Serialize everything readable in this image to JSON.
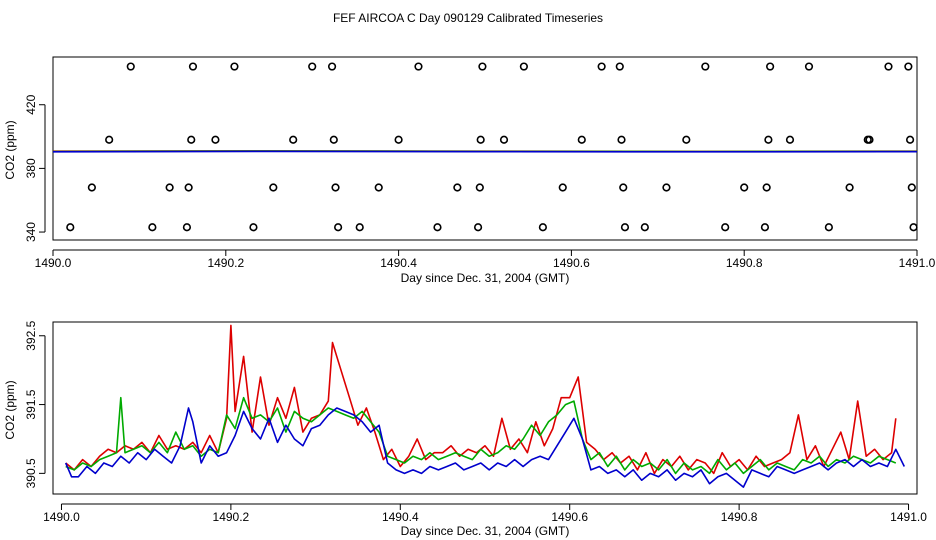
{
  "title": "FEF AIRCOA C  Day 090129  Calibrated Timeseries",
  "chart_data": [
    {
      "type": "scatter",
      "xlabel": "Day since Dec. 31, 2004 (GMT)",
      "ylabel": "CO2 (ppm)",
      "xlim": [
        1490.0,
        1491.0
      ],
      "ylim": [
        335,
        450
      ],
      "xticks": [
        1490.0,
        1490.2,
        1490.4,
        1490.6,
        1490.8,
        1491.0
      ],
      "xtick_labels": [
        "1490.0",
        "1490.2",
        "1490.4",
        "1490.6",
        "1490.8",
        "1491.0"
      ],
      "yticks": [
        340,
        380,
        420
      ],
      "ytick_labels": [
        "340",
        "380",
        "420"
      ],
      "grid": false,
      "series": [
        {
          "style": "open-circle",
          "color": "#000000",
          "x": [
            1490.02,
            1490.045,
            1490.065,
            1490.09,
            1490.115,
            1490.135,
            1490.155,
            1490.157,
            1490.16,
            1490.162,
            1490.188,
            1490.21,
            1490.232,
            1490.255,
            1490.278,
            1490.3,
            1490.323,
            1490.325,
            1490.327,
            1490.33,
            1490.355,
            1490.377,
            1490.4,
            1490.423,
            1490.445,
            1490.468,
            1490.492,
            1490.494,
            1490.495,
            1490.497,
            1490.522,
            1490.545,
            1490.567,
            1490.59,
            1490.612,
            1490.635,
            1490.656,
            1490.658,
            1490.66,
            1490.662,
            1490.685,
            1490.71,
            1490.733,
            1490.755,
            1490.778,
            1490.8,
            1490.824,
            1490.826,
            1490.828,
            1490.83,
            1490.853,
            1490.875,
            1490.898,
            1490.922,
            1490.943,
            1490.945,
            1490.967,
            1490.99,
            1490.992,
            1490.994,
            1490.996
          ],
          "y": [
            343,
            368,
            398,
            444,
            343,
            368,
            343,
            368,
            398,
            444,
            398,
            444,
            343,
            368,
            398,
            444,
            444,
            398,
            368,
            343,
            343,
            368,
            398,
            444,
            343,
            368,
            343,
            368,
            398,
            444,
            398,
            444,
            343,
            368,
            398,
            444,
            444,
            398,
            368,
            343,
            343,
            368,
            398,
            444,
            343,
            368,
            343,
            368,
            398,
            444,
            398,
            444,
            343,
            368,
            398,
            398,
            444,
            444,
            398,
            368,
            343
          ]
        },
        {
          "style": "line",
          "color": "#dd0000",
          "x": [
            1490.0,
            1490.25,
            1490.5,
            1490.75,
            1491.0
          ],
          "y": [
            390.8,
            391.0,
            390.8,
            390.7,
            390.8
          ]
        },
        {
          "style": "line",
          "color": "#00aa00",
          "x": [
            1490.0,
            1490.25,
            1490.5,
            1490.75,
            1491.0
          ],
          "y": [
            390.6,
            390.9,
            390.7,
            390.6,
            390.7
          ]
        },
        {
          "style": "line",
          "color": "#0000cc",
          "x": [
            1490.0,
            1490.25,
            1490.5,
            1490.75,
            1491.0
          ],
          "y": [
            390.4,
            390.7,
            390.5,
            390.4,
            390.5
          ]
        }
      ]
    },
    {
      "type": "line",
      "xlabel": "Day since Dec. 31, 2004 (GMT)",
      "ylabel": "CO2 (ppm)",
      "xlim": [
        1489.99,
        1491.01
      ],
      "ylim": [
        390.2,
        392.7
      ],
      "xticks": [
        1490.0,
        1490.2,
        1490.4,
        1490.6,
        1490.8,
        1491.0
      ],
      "xtick_labels": [
        "1490.0",
        "1490.2",
        "1490.4",
        "1490.6",
        "1490.8",
        "1491.0"
      ],
      "yticks": [
        390.5,
        391.5,
        392.5
      ],
      "ytick_labels": [
        "390.5",
        "391.5",
        "392.5"
      ],
      "grid": false,
      "series": [
        {
          "color": "#dd0000",
          "x": [
            1490.005,
            1490.015,
            1490.025,
            1490.035,
            1490.045,
            1490.055,
            1490.065,
            1490.075,
            1490.085,
            1490.095,
            1490.105,
            1490.115,
            1490.125,
            1490.135,
            1490.145,
            1490.155,
            1490.165,
            1490.175,
            1490.185,
            1490.195,
            1490.2,
            1490.205,
            1490.215,
            1490.225,
            1490.235,
            1490.245,
            1490.255,
            1490.265,
            1490.275,
            1490.285,
            1490.295,
            1490.305,
            1490.315,
            1490.32,
            1490.33,
            1490.34,
            1490.35,
            1490.36,
            1490.37,
            1490.38,
            1490.39,
            1490.4,
            1490.41,
            1490.42,
            1490.43,
            1490.44,
            1490.45,
            1490.46,
            1490.47,
            1490.48,
            1490.49,
            1490.5,
            1490.51,
            1490.52,
            1490.53,
            1490.54,
            1490.55,
            1490.56,
            1490.57,
            1490.58,
            1490.59,
            1490.6,
            1490.61,
            1490.62,
            1490.63,
            1490.64,
            1490.65,
            1490.66,
            1490.67,
            1490.68,
            1490.69,
            1490.7,
            1490.71,
            1490.72,
            1490.73,
            1490.74,
            1490.75,
            1490.76,
            1490.77,
            1490.78,
            1490.79,
            1490.8,
            1490.81,
            1490.82,
            1490.83,
            1490.84,
            1490.85,
            1490.86,
            1490.87,
            1490.88,
            1490.89,
            1490.9,
            1490.91,
            1490.92,
            1490.93,
            1490.94,
            1490.95,
            1490.96,
            1490.97,
            1490.98,
            1490.985
          ],
          "y": [
            390.65,
            390.55,
            390.7,
            390.6,
            390.75,
            390.85,
            390.8,
            390.9,
            390.85,
            390.95,
            390.8,
            391.05,
            390.85,
            390.9,
            390.85,
            390.95,
            390.8,
            391.05,
            390.8,
            391.3,
            392.65,
            391.4,
            392.2,
            391.1,
            391.9,
            391.2,
            391.6,
            391.3,
            391.75,
            391.1,
            391.3,
            391.35,
            391.55,
            392.4,
            392.0,
            391.6,
            391.2,
            391.45,
            391.1,
            390.7,
            390.85,
            390.6,
            390.75,
            391.0,
            390.7,
            390.8,
            390.8,
            390.9,
            390.75,
            390.85,
            390.8,
            390.9,
            390.75,
            391.3,
            390.85,
            391.0,
            390.8,
            391.25,
            390.9,
            391.15,
            391.6,
            391.6,
            391.9,
            390.95,
            390.85,
            390.7,
            390.8,
            390.65,
            390.75,
            390.55,
            390.8,
            390.5,
            390.7,
            390.6,
            390.75,
            390.55,
            390.7,
            390.65,
            390.5,
            390.8,
            390.6,
            390.7,
            390.55,
            390.75,
            390.6,
            390.65,
            390.7,
            390.8,
            391.35,
            390.7,
            390.9,
            390.6,
            390.85,
            391.1,
            390.7,
            391.55,
            390.75,
            390.85,
            390.7,
            390.8,
            391.3
          ]
        },
        {
          "color": "#00aa00",
          "x": [
            1490.005,
            1490.015,
            1490.025,
            1490.035,
            1490.045,
            1490.055,
            1490.065,
            1490.07,
            1490.075,
            1490.085,
            1490.095,
            1490.105,
            1490.115,
            1490.125,
            1490.135,
            1490.145,
            1490.155,
            1490.165,
            1490.175,
            1490.185,
            1490.195,
            1490.205,
            1490.215,
            1490.225,
            1490.235,
            1490.245,
            1490.255,
            1490.265,
            1490.275,
            1490.285,
            1490.295,
            1490.305,
            1490.315,
            1490.325,
            1490.335,
            1490.345,
            1490.355,
            1490.365,
            1490.375,
            1490.385,
            1490.395,
            1490.405,
            1490.415,
            1490.425,
            1490.435,
            1490.445,
            1490.455,
            1490.465,
            1490.475,
            1490.485,
            1490.495,
            1490.505,
            1490.515,
            1490.525,
            1490.535,
            1490.545,
            1490.555,
            1490.565,
            1490.575,
            1490.585,
            1490.595,
            1490.605,
            1490.615,
            1490.625,
            1490.635,
            1490.645,
            1490.655,
            1490.665,
            1490.675,
            1490.685,
            1490.695,
            1490.705,
            1490.715,
            1490.725,
            1490.735,
            1490.745,
            1490.755,
            1490.765,
            1490.775,
            1490.785,
            1490.795,
            1490.805,
            1490.815,
            1490.825,
            1490.835,
            1490.845,
            1490.855,
            1490.865,
            1490.875,
            1490.885,
            1490.895,
            1490.905,
            1490.915,
            1490.925,
            1490.935,
            1490.945,
            1490.955,
            1490.965,
            1490.975,
            1490.985
          ],
          "y": [
            390.6,
            390.55,
            390.65,
            390.6,
            390.7,
            390.75,
            390.8,
            391.6,
            390.8,
            390.85,
            390.9,
            390.8,
            390.95,
            390.8,
            391.1,
            390.85,
            390.9,
            390.75,
            390.85,
            390.8,
            391.35,
            391.15,
            391.6,
            391.3,
            391.35,
            391.25,
            391.45,
            391.1,
            391.4,
            391.3,
            391.25,
            391.35,
            391.45,
            391.4,
            391.35,
            391.3,
            391.4,
            391.25,
            391.1,
            390.75,
            390.7,
            390.65,
            390.75,
            390.7,
            390.8,
            390.7,
            390.75,
            390.8,
            390.75,
            390.7,
            390.85,
            390.75,
            390.8,
            390.9,
            390.85,
            391.0,
            391.2,
            391.05,
            391.25,
            391.35,
            391.5,
            391.55,
            391.0,
            390.7,
            390.8,
            390.6,
            390.75,
            390.55,
            390.7,
            390.6,
            390.65,
            390.55,
            390.7,
            390.5,
            390.65,
            390.55,
            390.6,
            390.5,
            390.7,
            390.55,
            390.65,
            390.5,
            390.6,
            390.7,
            390.55,
            390.65,
            390.6,
            390.55,
            390.7,
            390.65,
            390.75,
            390.6,
            390.7,
            390.65,
            390.75,
            390.7,
            390.65,
            390.75,
            390.7,
            390.65
          ]
        },
        {
          "color": "#0000cc",
          "x": [
            1490.005,
            1490.012,
            1490.02,
            1490.03,
            1490.04,
            1490.05,
            1490.06,
            1490.07,
            1490.08,
            1490.09,
            1490.1,
            1490.11,
            1490.12,
            1490.13,
            1490.14,
            1490.15,
            1490.155,
            1490.165,
            1490.175,
            1490.185,
            1490.195,
            1490.205,
            1490.215,
            1490.225,
            1490.235,
            1490.245,
            1490.255,
            1490.265,
            1490.275,
            1490.285,
            1490.295,
            1490.305,
            1490.315,
            1490.325,
            1490.335,
            1490.345,
            1490.355,
            1490.365,
            1490.375,
            1490.385,
            1490.395,
            1490.405,
            1490.415,
            1490.425,
            1490.435,
            1490.445,
            1490.455,
            1490.465,
            1490.475,
            1490.485,
            1490.495,
            1490.505,
            1490.515,
            1490.525,
            1490.535,
            1490.545,
            1490.555,
            1490.565,
            1490.575,
            1490.585,
            1490.595,
            1490.605,
            1490.615,
            1490.625,
            1490.635,
            1490.645,
            1490.655,
            1490.665,
            1490.675,
            1490.685,
            1490.695,
            1490.705,
            1490.715,
            1490.725,
            1490.735,
            1490.745,
            1490.755,
            1490.765,
            1490.775,
            1490.785,
            1490.795,
            1490.805,
            1490.815,
            1490.825,
            1490.835,
            1490.845,
            1490.855,
            1490.865,
            1490.875,
            1490.885,
            1490.895,
            1490.905,
            1490.915,
            1490.925,
            1490.935,
            1490.945,
            1490.955,
            1490.965,
            1490.975,
            1490.985,
            1490.995
          ],
          "y": [
            390.65,
            390.45,
            390.45,
            390.6,
            390.5,
            390.65,
            390.6,
            390.75,
            390.65,
            390.8,
            390.7,
            390.85,
            390.75,
            390.65,
            390.9,
            391.45,
            391.25,
            390.65,
            390.9,
            390.75,
            390.8,
            391.05,
            391.4,
            391.15,
            391.0,
            391.3,
            390.95,
            391.2,
            391.0,
            390.9,
            391.15,
            391.2,
            391.35,
            391.45,
            391.4,
            391.35,
            391.25,
            391.1,
            391.2,
            390.65,
            390.55,
            390.5,
            390.55,
            390.5,
            390.6,
            390.55,
            390.6,
            390.65,
            390.55,
            390.6,
            390.65,
            390.55,
            390.65,
            390.6,
            390.7,
            390.6,
            390.7,
            390.75,
            390.7,
            390.9,
            391.1,
            391.3,
            391.0,
            390.55,
            390.6,
            390.5,
            390.55,
            390.45,
            390.55,
            390.4,
            390.5,
            390.45,
            390.55,
            390.4,
            390.5,
            390.45,
            390.55,
            390.35,
            390.45,
            390.5,
            390.4,
            390.3,
            390.55,
            390.5,
            390.45,
            390.6,
            390.55,
            390.5,
            390.55,
            390.6,
            390.65,
            390.55,
            390.65,
            390.7,
            390.6,
            390.7,
            390.6,
            390.65,
            390.6,
            390.85,
            390.6
          ]
        }
      ]
    }
  ]
}
